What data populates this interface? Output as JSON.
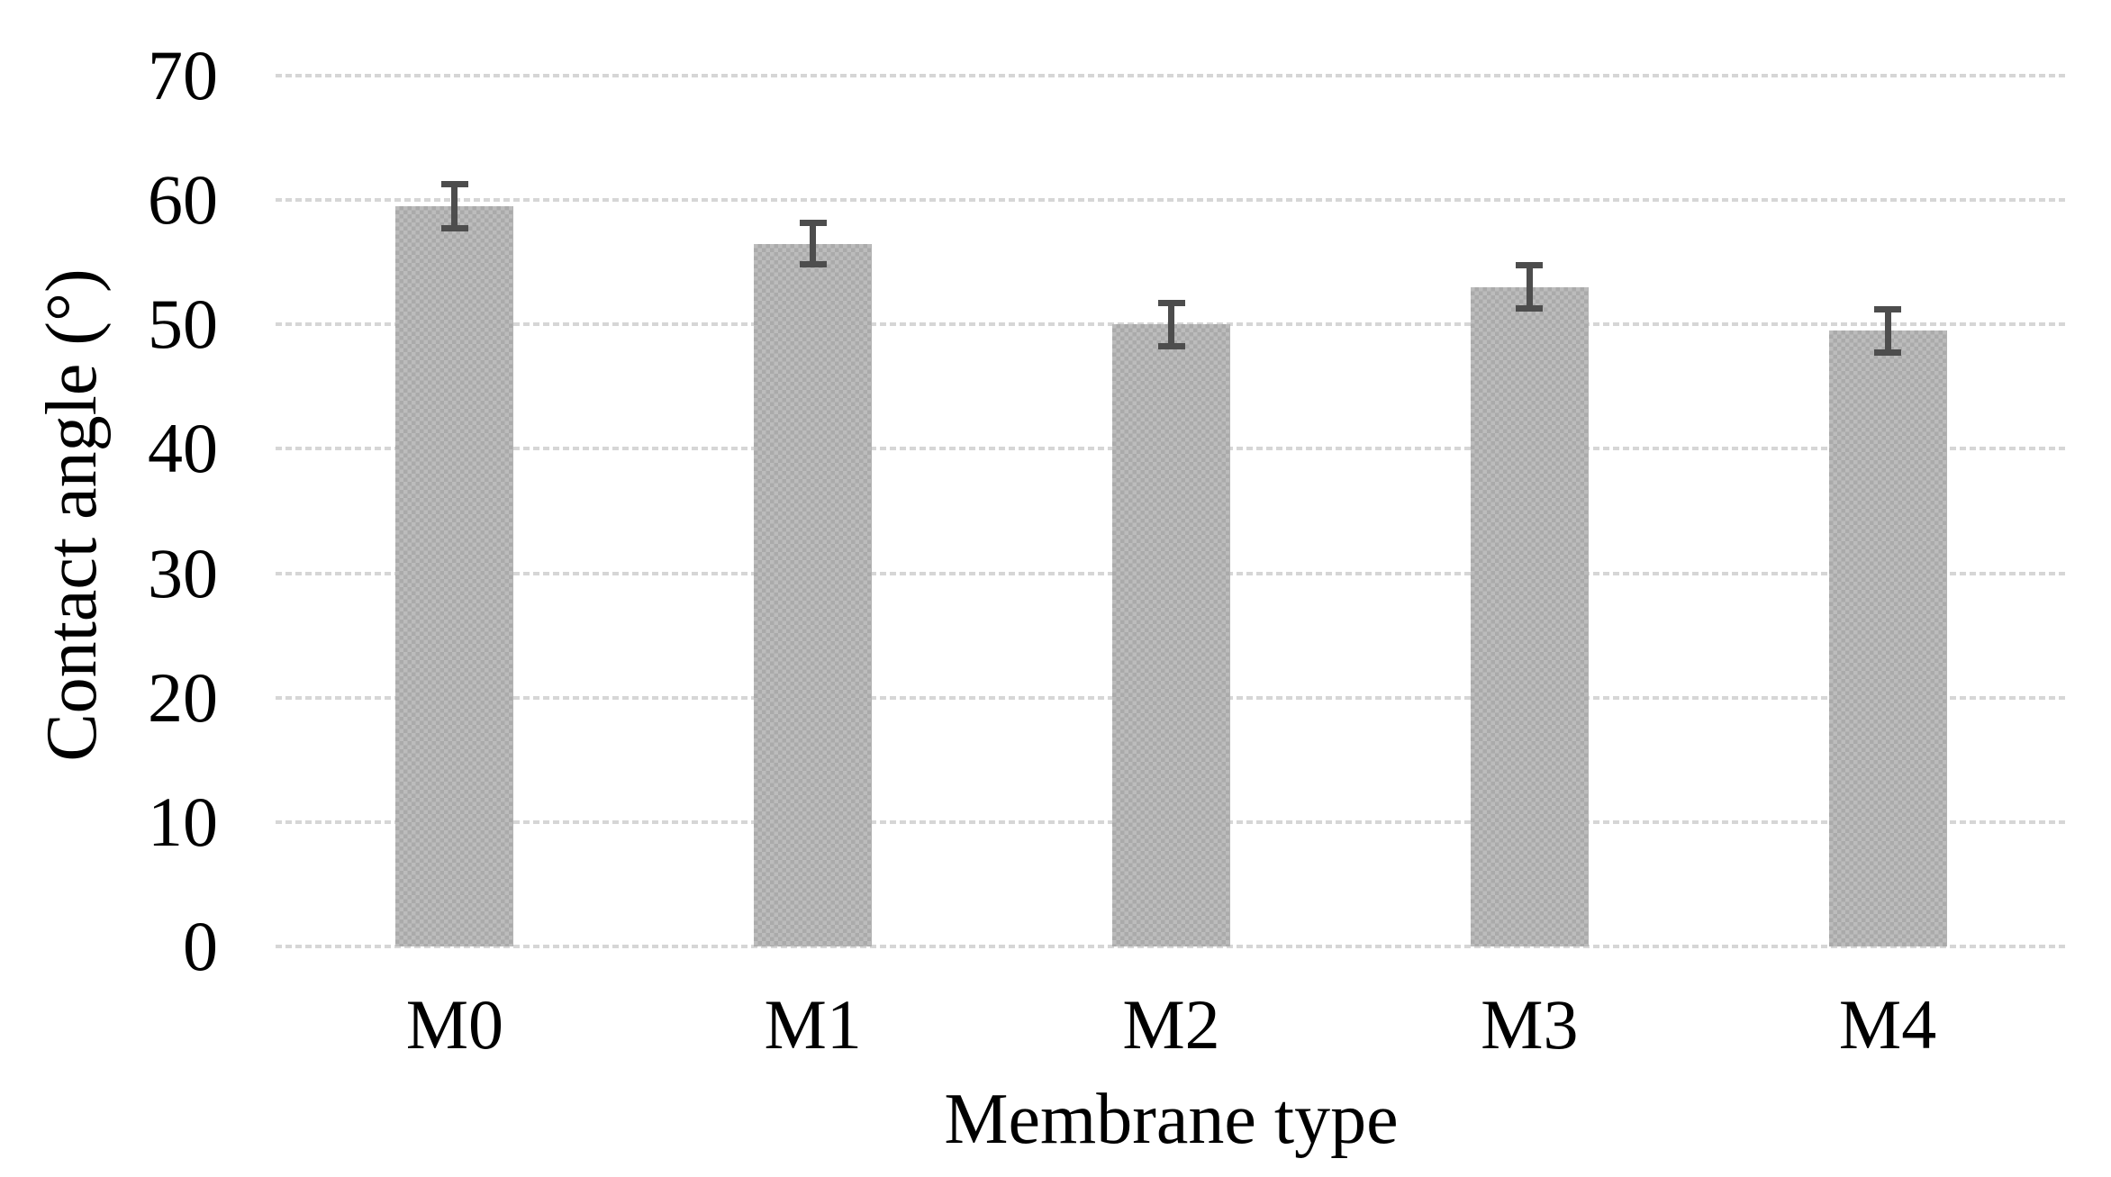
{
  "chart_data": {
    "type": "bar",
    "title": "",
    "xlabel": "Membrane type",
    "ylabel": "Contact angle (°)",
    "categories": [
      "M0",
      "M1",
      "M2",
      "M3",
      "M4"
    ],
    "series": [
      {
        "name": "Contact angle",
        "values": [
          59.5,
          56.5,
          50.0,
          53.0,
          49.5
        ],
        "errors": [
          2.0,
          1.9,
          2.0,
          2.0,
          2.0
        ]
      }
    ],
    "ylim": [
      0,
      70
    ],
    "yticks": [
      0,
      10,
      20,
      30,
      40,
      50,
      60,
      70
    ],
    "grid": "horizontal-only",
    "legend": "none",
    "colors": {
      "bar_fill": "#bcbcbc",
      "bar_pattern_dot": "#aaaaaa",
      "error_bar": "#4d4d4d",
      "gridline": "#d6d6d6",
      "text": "#000000",
      "background": "#ffffff"
    }
  }
}
